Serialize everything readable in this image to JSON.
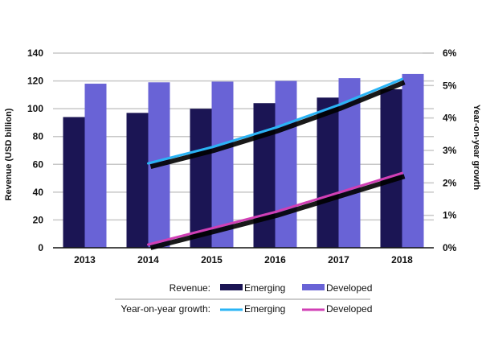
{
  "chart_data": {
    "type": "bar",
    "title": "",
    "xlabel": "",
    "ylabel": "Revenue (USD billion)",
    "y2label": "Year-on-year growth",
    "ylim": [
      0,
      140
    ],
    "y2lim": [
      0,
      6
    ],
    "yticks": [
      "0",
      "20",
      "40",
      "60",
      "80",
      "100",
      "120",
      "140"
    ],
    "y2ticks": [
      "0%",
      "1%",
      "2%",
      "3%",
      "4%",
      "5%",
      "6%"
    ],
    "categories": [
      "2013",
      "2014",
      "2015",
      "2016",
      "2017",
      "2018"
    ],
    "grid": true,
    "legend_position": "bottom",
    "series": [
      {
        "name": "Emerging",
        "group": "Revenue",
        "kind": "bar",
        "color": "#1b1554",
        "values": [
          94,
          97,
          100,
          104,
          108,
          114
        ]
      },
      {
        "name": "Developed",
        "group": "Revenue",
        "kind": "bar",
        "color": "#6963d6",
        "values": [
          118,
          119,
          119.5,
          120,
          122,
          125
        ]
      },
      {
        "name": "Emerging",
        "group": "Year-on-year growth",
        "kind": "line",
        "axis": "right",
        "color": "#2ab4f5",
        "values": [
          null,
          2.6,
          3.1,
          3.7,
          4.4,
          5.2
        ]
      },
      {
        "name": "Developed",
        "group": "Year-on-year growth",
        "kind": "line",
        "axis": "right",
        "color": "#d13fb5",
        "values": [
          null,
          0.1,
          0.6,
          1.1,
          1.7,
          2.3
        ]
      }
    ]
  },
  "legend": {
    "revenue_label": "Revenue:",
    "growth_label": "Year-on-year growth:",
    "emerging": "Emerging",
    "developed": "Developed"
  }
}
